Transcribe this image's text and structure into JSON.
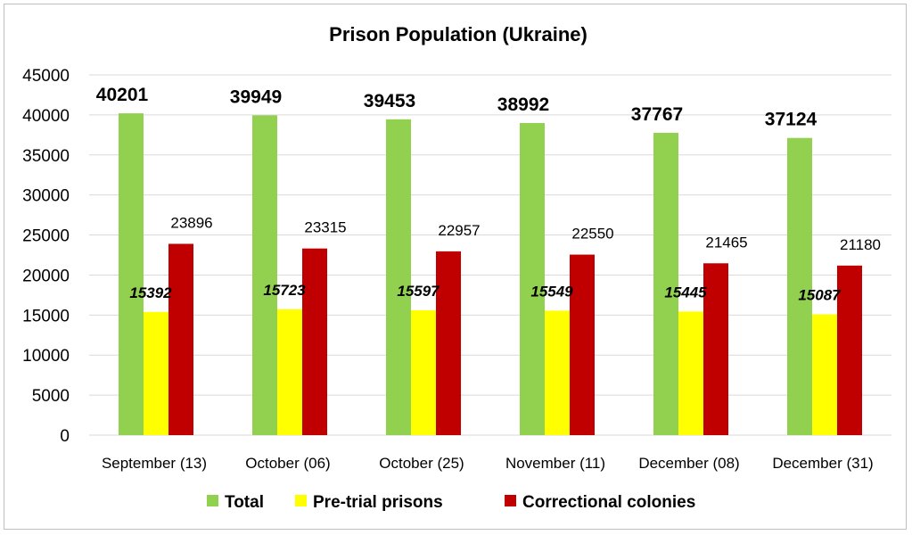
{
  "chart_data": {
    "type": "bar",
    "title": "Prison Population (Ukraine)",
    "categories": [
      "September (13)",
      "October (06)",
      "October  (25)",
      "November (11)",
      "December (08)",
      "December (31)"
    ],
    "series": [
      {
        "name": "Total",
        "color": "#92d050",
        "values": [
          40201,
          39949,
          39453,
          38992,
          37767,
          37124
        ]
      },
      {
        "name": "Pre-trial prisons",
        "color": "#ffff00",
        "values": [
          15392,
          15723,
          15597,
          15549,
          15445,
          15087
        ]
      },
      {
        "name": "Correctional colonies",
        "color": "#c00000",
        "values": [
          23896,
          23315,
          22957,
          22550,
          21465,
          21180
        ]
      }
    ],
    "ylim": [
      0,
      45000
    ],
    "yticks": [
      0,
      5000,
      10000,
      15000,
      20000,
      25000,
      30000,
      35000,
      40000,
      45000
    ],
    "xlabel": "",
    "ylabel": "",
    "grid": true,
    "legend_position": "bottom"
  }
}
